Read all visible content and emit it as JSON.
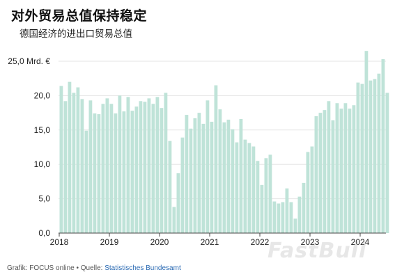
{
  "title": "对外贸易总值保持稳定",
  "subtitle": "德国经济的进出口贸易总值",
  "source": {
    "prefix": "Grafik: FOCUS online • Quelle: ",
    "link": "Statistisches Bundesamt"
  },
  "watermark": "FastBull",
  "colors": {
    "bar": "#bfe3d8",
    "grid": "#e6e6e6",
    "axis": "#444444"
  },
  "chart_data": {
    "type": "bar",
    "title": "对外贸易总值保持稳定",
    "subtitle": "德国经济的进出口贸易总值",
    "ylim": [
      0,
      25
    ],
    "yticks": [
      {
        "value": 0,
        "label": "0,0"
      },
      {
        "value": 5,
        "label": "5,0"
      },
      {
        "value": 10,
        "label": "10,0"
      },
      {
        "value": 15,
        "label": "15,0"
      },
      {
        "value": 20,
        "label": "20,0"
      },
      {
        "value": 25,
        "label": "25,0 Mrd. €"
      }
    ],
    "xticks": [
      "2018",
      "2019",
      "2020",
      "2021",
      "2022",
      "2023",
      "2024"
    ],
    "start": "2018-01",
    "grid": true,
    "values": [
      21.4,
      19.2,
      22.0,
      20.4,
      21.2,
      19.5,
      14.9,
      19.3,
      17.4,
      17.3,
      18.8,
      19.6,
      18.8,
      17.4,
      20.0,
      17.7,
      19.8,
      17.8,
      18.4,
      19.2,
      19.1,
      19.6,
      18.8,
      19.8,
      18.2,
      20.4,
      13.4,
      3.8,
      8.7,
      13.9,
      17.2,
      15.2,
      16.7,
      17.5,
      15.9,
      19.3,
      16.2,
      21.5,
      18.0,
      16.1,
      16.5,
      15.1,
      13.2,
      16.6,
      13.6,
      13.1,
      12.6,
      10.5,
      7.0,
      10.9,
      11.4,
      4.6,
      4.3,
      4.5,
      6.5,
      4.5,
      2.1,
      5.3,
      7.3,
      11.8,
      12.6,
      17.0,
      17.5,
      17.9,
      19.2,
      16.4,
      18.9,
      18.1,
      18.9,
      18.1,
      18.6,
      21.9,
      21.7,
      26.5,
      22.2,
      22.4,
      23.2,
      25.3,
      20.4
    ]
  }
}
